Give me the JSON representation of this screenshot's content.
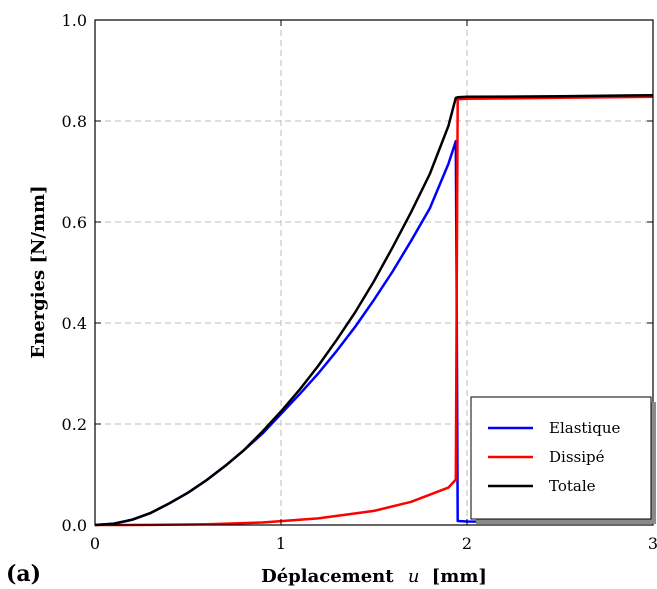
{
  "panel_label": "(a)",
  "chart_data": {
    "type": "line",
    "xlabel_prefix": "Déplacement",
    "xlabel_var": "u",
    "xlabel_unit": "[mm]",
    "ylabel": "Energies  [N/mm]",
    "xlim": [
      0,
      3
    ],
    "ylim": [
      0,
      1.0
    ],
    "xticks": [
      0,
      1,
      2,
      3
    ],
    "yticks": [
      0.0,
      0.2,
      0.4,
      0.6,
      0.8,
      1.0
    ],
    "xtick_labels": [
      "0",
      "1",
      "2",
      "3"
    ],
    "ytick_labels": [
      "0.0",
      "0.2",
      "0.4",
      "0.6",
      "0.8",
      "1.0"
    ],
    "grid": true,
    "legend_position": "bottom-right",
    "series": [
      {
        "name": "Elastique",
        "color": "#0000ff",
        "x": [
          0,
          0.1,
          0.2,
          0.3,
          0.4,
          0.5,
          0.6,
          0.7,
          0.8,
          0.9,
          1.0,
          1.1,
          1.2,
          1.3,
          1.4,
          1.5,
          1.6,
          1.7,
          1.8,
          1.9,
          1.94,
          1.945,
          1.95,
          2.0,
          2.5,
          3.0
        ],
        "y": [
          0,
          0.0025,
          0.0105,
          0.024,
          0.043,
          0.064,
          0.089,
          0.117,
          0.148,
          0.181,
          0.22,
          0.259,
          0.3,
          0.345,
          0.393,
          0.446,
          0.502,
          0.563,
          0.627,
          0.715,
          0.76,
          0.4,
          0.008,
          0.007,
          0.006,
          0.005
        ]
      },
      {
        "name": "Dissipé",
        "color": "#ff0000",
        "x": [
          0,
          0.3,
          0.6,
          0.9,
          1.2,
          1.5,
          1.7,
          1.9,
          1.94,
          1.945,
          1.95,
          2.0,
          2.5,
          3.0
        ],
        "y": [
          0,
          0.0002,
          0.0015,
          0.005,
          0.013,
          0.028,
          0.046,
          0.074,
          0.09,
          0.5,
          0.843,
          0.844,
          0.846,
          0.848
        ]
      },
      {
        "name": "Totale",
        "color": "#000000",
        "x": [
          0,
          0.1,
          0.2,
          0.3,
          0.4,
          0.5,
          0.6,
          0.7,
          0.8,
          0.9,
          1.0,
          1.1,
          1.2,
          1.3,
          1.4,
          1.5,
          1.6,
          1.7,
          1.8,
          1.9,
          1.94,
          1.95,
          2.0,
          2.5,
          3.0
        ],
        "y": [
          0,
          0.0025,
          0.0105,
          0.024,
          0.043,
          0.064,
          0.089,
          0.117,
          0.148,
          0.185,
          0.225,
          0.268,
          0.315,
          0.367,
          0.422,
          0.483,
          0.55,
          0.62,
          0.695,
          0.79,
          0.846,
          0.847,
          0.848,
          0.849,
          0.851
        ]
      }
    ]
  }
}
